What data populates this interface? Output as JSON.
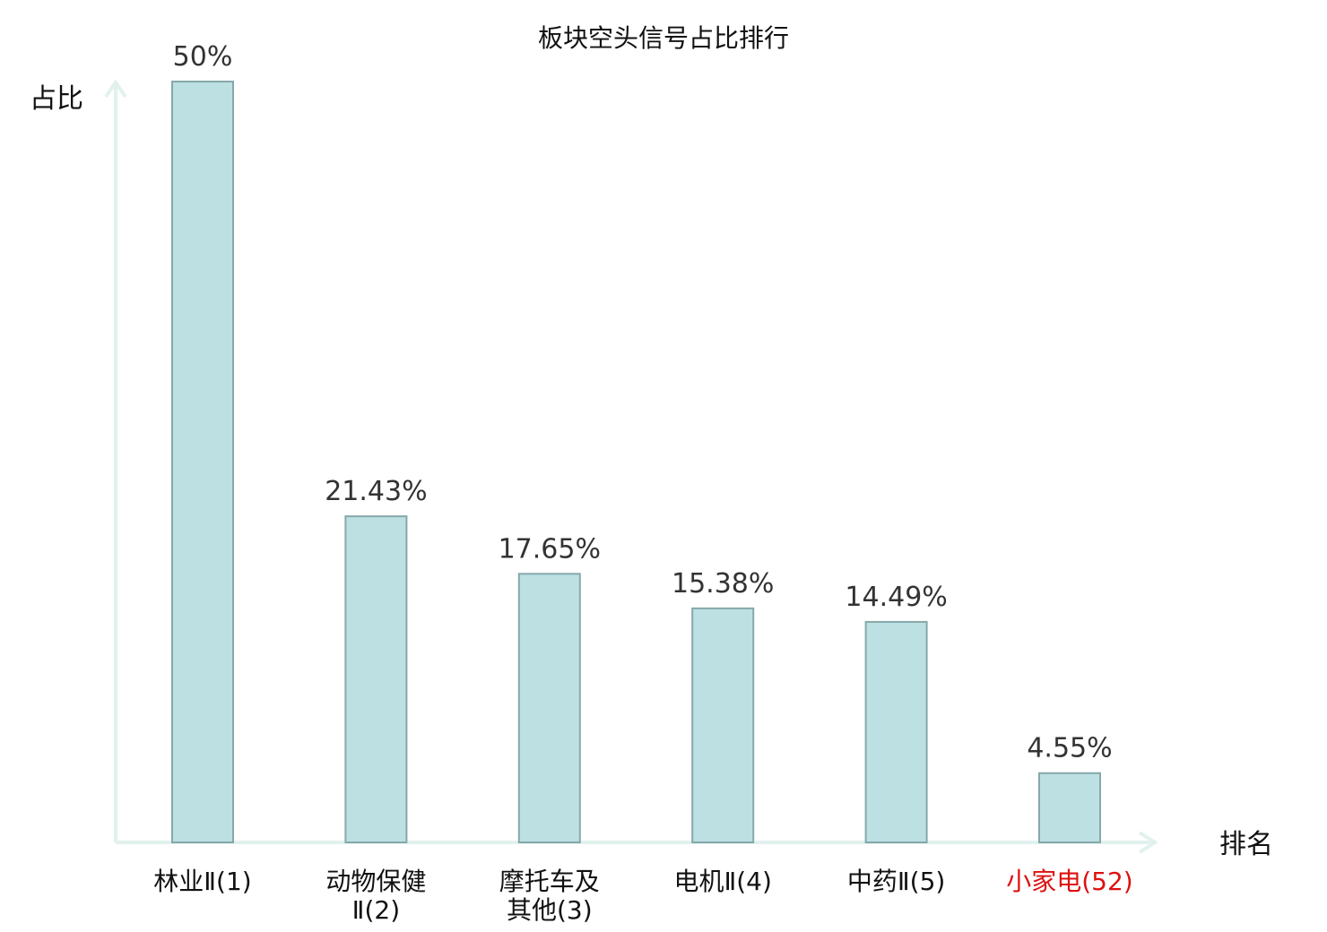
{
  "chart_data": {
    "type": "bar",
    "title": "板块空头信号占比排行",
    "ylabel": "占比",
    "xlabel": "排名",
    "ylim": [
      0,
      50
    ],
    "categories": [
      {
        "lines": [
          "林业Ⅱ(1)"
        ],
        "highlight": false
      },
      {
        "lines": [
          "动物保健",
          "Ⅱ(2)"
        ],
        "highlight": false
      },
      {
        "lines": [
          "摩托车及",
          "其他(3)"
        ],
        "highlight": false
      },
      {
        "lines": [
          "电机Ⅱ(4)"
        ],
        "highlight": false
      },
      {
        "lines": [
          "中药Ⅱ(5)"
        ],
        "highlight": false
      },
      {
        "lines": [
          "小家电(52)"
        ],
        "highlight": true
      }
    ],
    "values": [
      50,
      21.43,
      17.65,
      15.38,
      14.49,
      4.55
    ],
    "value_labels": [
      "50%",
      "21.43%",
      "17.65%",
      "15.38%",
      "14.49%",
      "4.55%"
    ],
    "colors": {
      "bar_fill": "#bde0e3",
      "bar_stroke": "#86a8aa",
      "axis": "#e1f1ee",
      "highlight_text": "#dd1111"
    }
  }
}
